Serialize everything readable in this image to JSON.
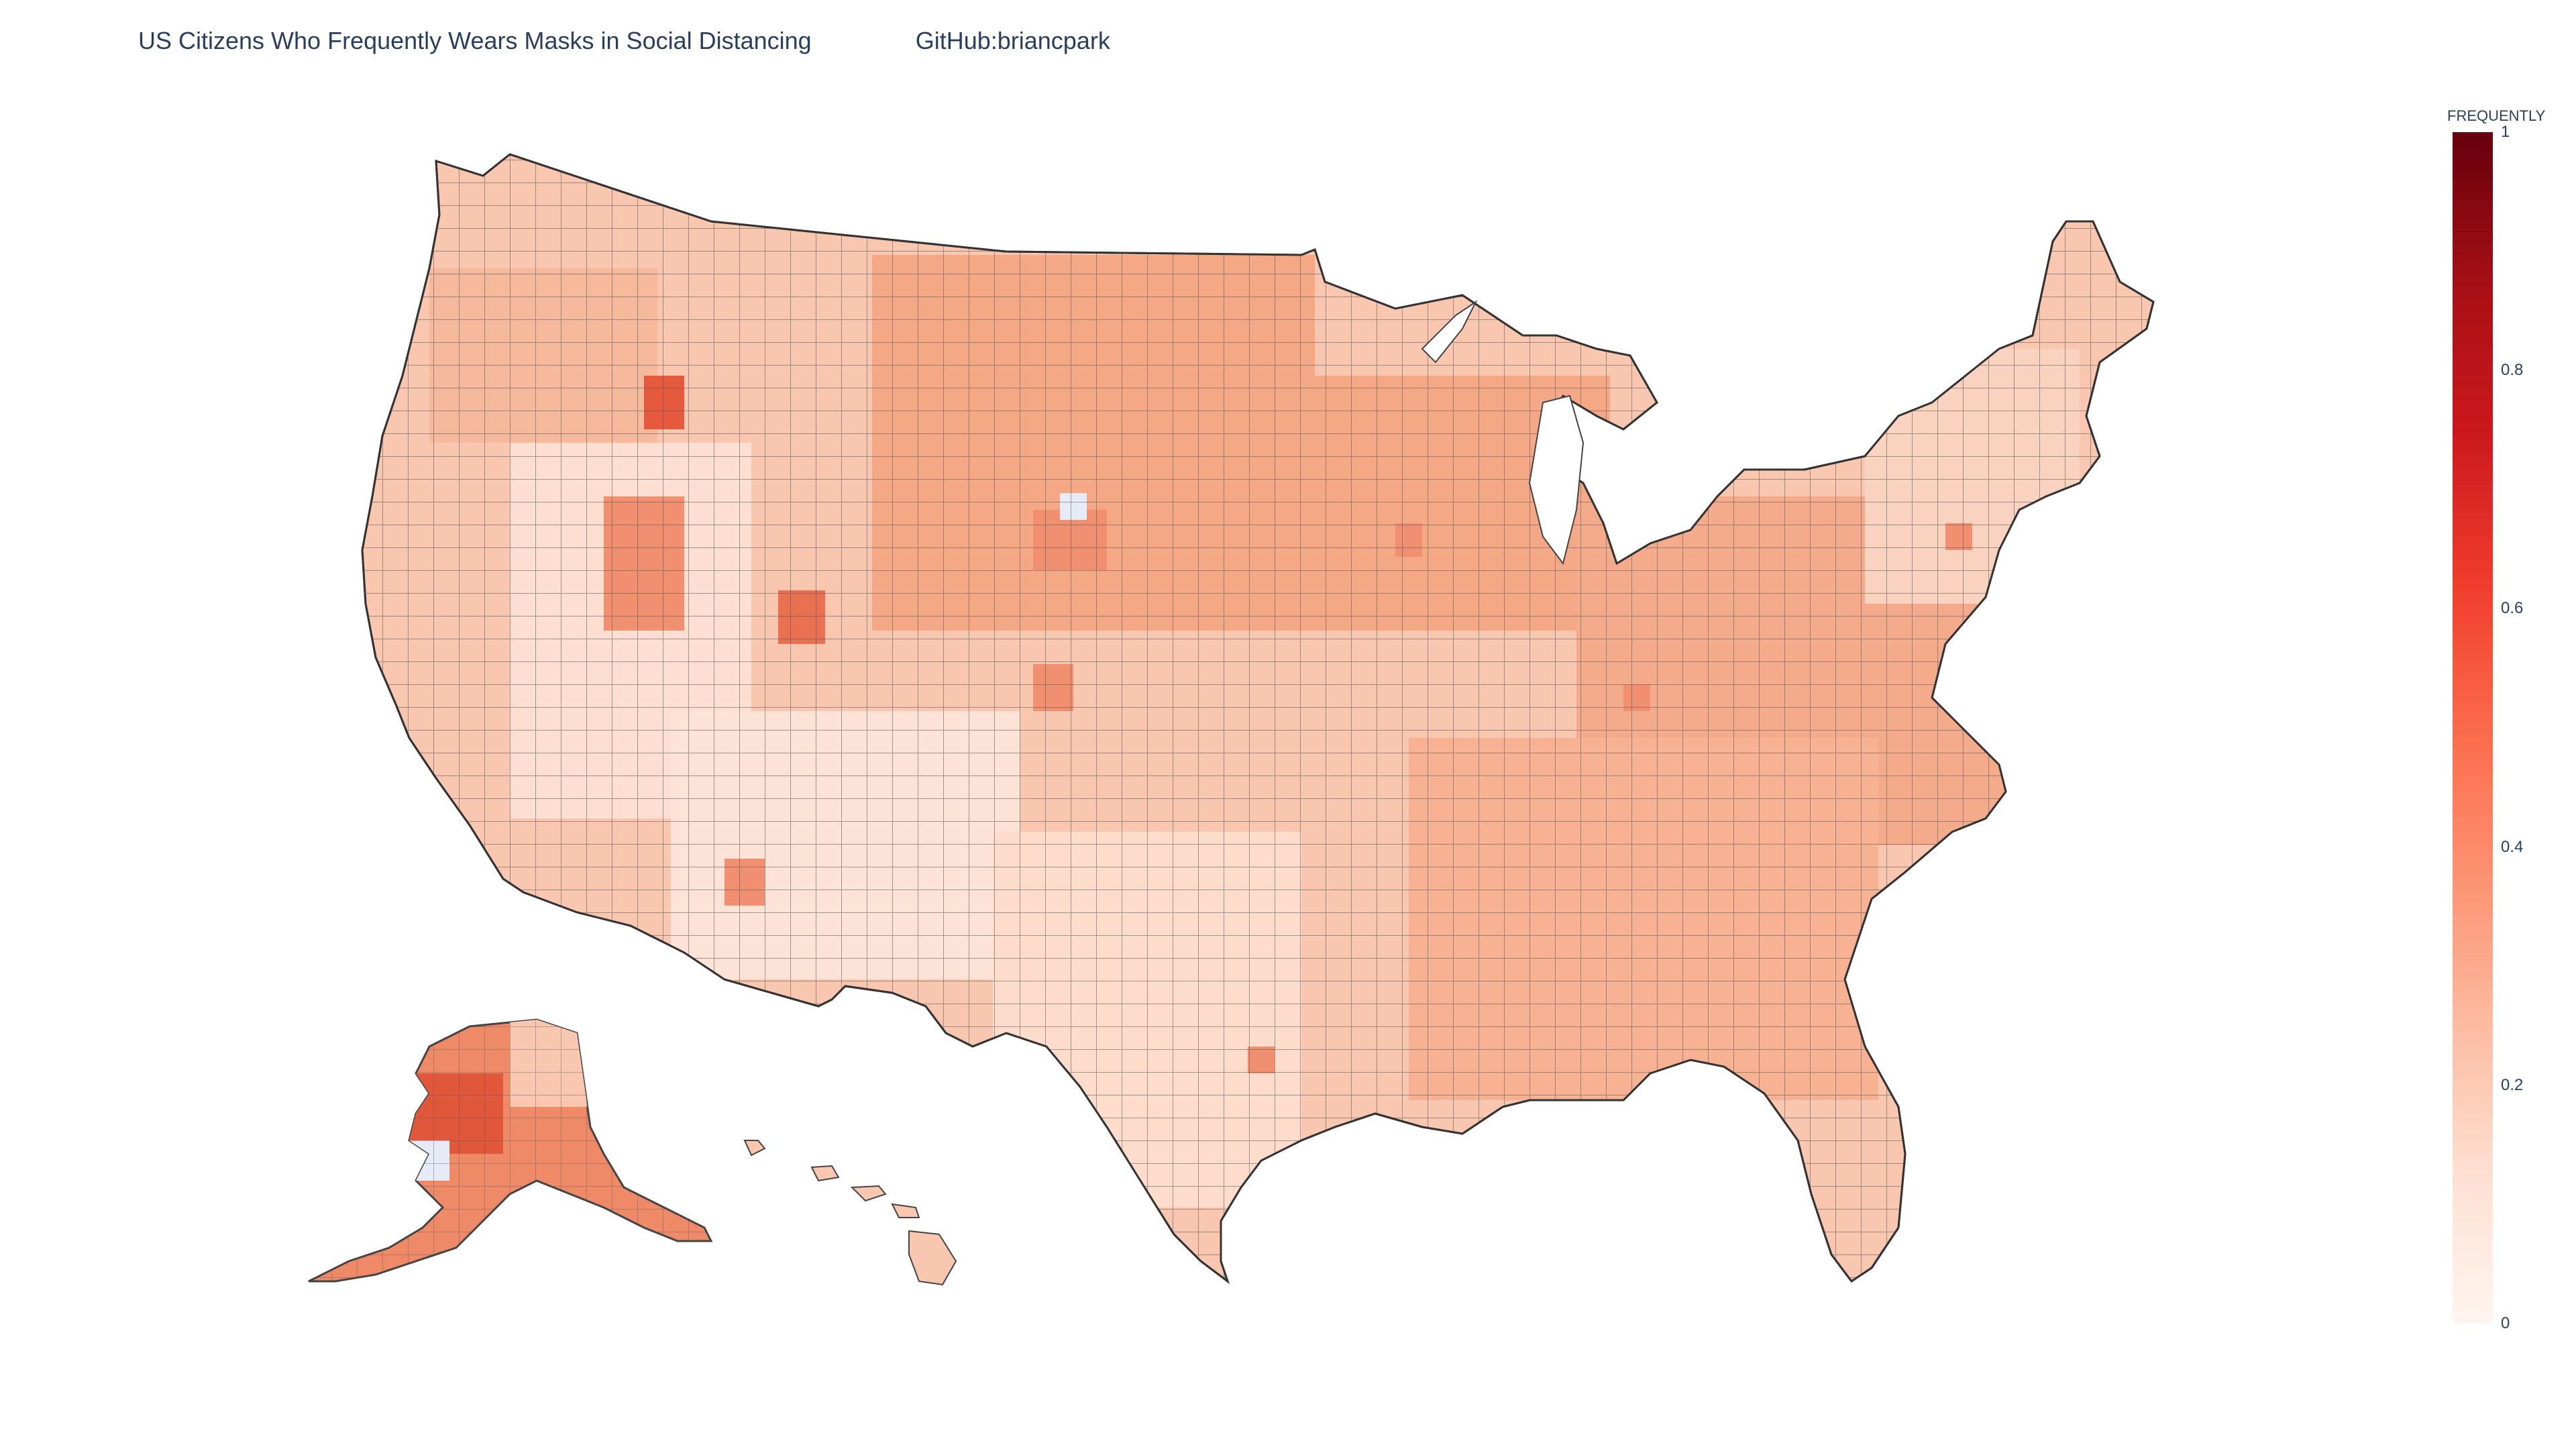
{
  "title": "US Citizens Who Frequently Wears Masks in Social Distancing",
  "credit": "GitHub:briancpark",
  "colorbar": {
    "title": "FREQUENTLY",
    "min": 0,
    "max": 1,
    "ticks": [
      "0",
      "0.2",
      "0.4",
      "0.6",
      "0.8",
      "1"
    ],
    "tick_values": [
      0,
      0.2,
      0.4,
      0.6,
      0.8,
      1
    ],
    "colorscale": [
      "#fff5f0",
      "#fee0d2",
      "#fcbba1",
      "#fc9272",
      "#fb6a4a",
      "#ef3b2c",
      "#cb181d",
      "#a50f15",
      "#67000d"
    ]
  },
  "map": {
    "type": "choropleth",
    "scope": "usa",
    "level": "county",
    "missing_color": "#e5ecf6",
    "border_color": "#444444"
  }
}
